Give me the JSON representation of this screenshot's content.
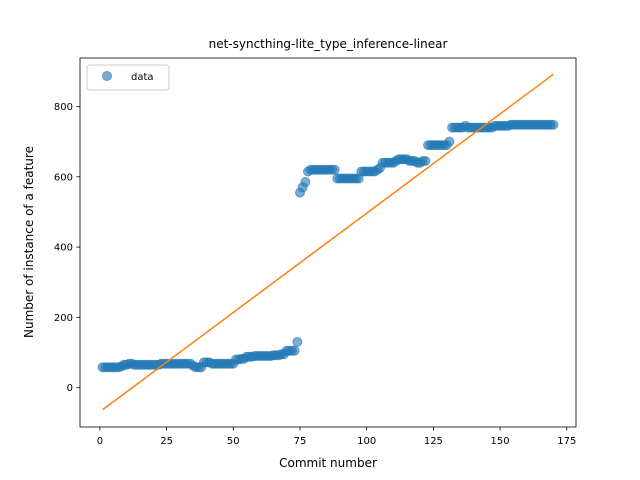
{
  "chart_data": {
    "type": "scatter",
    "title": "net-syncthing-lite_type_inference-linear",
    "xlabel": "Commit number",
    "ylabel": "Number of instance of a feature",
    "xlim": [
      -7.45,
      178.45
    ],
    "ylim": [
      -112,
      938
    ],
    "xticks": [
      0,
      25,
      50,
      75,
      100,
      125,
      150,
      175
    ],
    "yticks": [
      0,
      200,
      400,
      600,
      800
    ],
    "grid": false,
    "legend": {
      "placement": "top-left",
      "entries": [
        "data"
      ]
    },
    "series": [
      {
        "name": "data",
        "kind": "points",
        "color": "#1f77b4",
        "x": [
          1,
          2,
          3,
          4,
          5,
          6,
          7,
          8,
          9,
          10,
          11,
          12,
          13,
          14,
          15,
          16,
          17,
          18,
          19,
          20,
          21,
          22,
          23,
          24,
          25,
          26,
          27,
          28,
          29,
          30,
          31,
          32,
          33,
          34,
          35,
          36,
          37,
          38,
          39,
          40,
          41,
          42,
          43,
          44,
          45,
          46,
          47,
          48,
          49,
          50,
          51,
          52,
          53,
          54,
          55,
          56,
          57,
          58,
          59,
          60,
          61,
          62,
          63,
          64,
          65,
          66,
          67,
          68,
          69,
          70,
          71,
          72,
          73,
          74,
          75,
          76,
          77,
          78,
          79,
          80,
          81,
          82,
          83,
          84,
          85,
          86,
          87,
          88,
          89,
          90,
          91,
          92,
          93,
          94,
          95,
          96,
          97,
          98,
          99,
          100,
          101,
          102,
          103,
          104,
          105,
          106,
          107,
          108,
          109,
          110,
          111,
          112,
          113,
          114,
          115,
          116,
          117,
          118,
          119,
          120,
          121,
          122,
          123,
          124,
          125,
          126,
          127,
          128,
          129,
          130,
          131,
          132,
          133,
          134,
          135,
          136,
          137,
          138,
          139,
          140,
          141,
          142,
          143,
          144,
          145,
          146,
          147,
          148,
          149,
          150,
          151,
          152,
          153,
          154,
          155,
          156,
          157,
          158,
          159,
          160,
          161,
          162,
          163,
          164,
          165,
          166,
          167,
          168,
          169,
          170
        ],
        "y": [
          58,
          58,
          58,
          58,
          58,
          58,
          58,
          60,
          65,
          65,
          68,
          68,
          65,
          65,
          65,
          65,
          65,
          65,
          65,
          65,
          65,
          65,
          68,
          68,
          68,
          68,
          68,
          68,
          68,
          68,
          68,
          68,
          68,
          68,
          62,
          58,
          58,
          58,
          72,
          72,
          72,
          68,
          68,
          68,
          68,
          68,
          68,
          68,
          68,
          68,
          80,
          80,
          82,
          82,
          88,
          88,
          88,
          90,
          90,
          90,
          90,
          90,
          90,
          90,
          92,
          92,
          92,
          95,
          95,
          105,
          105,
          105,
          105,
          130,
          555,
          570,
          585,
          615,
          620,
          620,
          620,
          620,
          620,
          620,
          620,
          620,
          620,
          620,
          595,
          595,
          595,
          595,
          595,
          595,
          595,
          595,
          595,
          615,
          615,
          615,
          615,
          615,
          615,
          620,
          625,
          640,
          640,
          640,
          640,
          640,
          645,
          650,
          650,
          650,
          650,
          645,
          645,
          645,
          640,
          640,
          645,
          645,
          690,
          690,
          690,
          690,
          690,
          690,
          690,
          690,
          700,
          740,
          740,
          740,
          740,
          740,
          745,
          740,
          740,
          740,
          740,
          740,
          740,
          740,
          740,
          740,
          740,
          745,
          745,
          745,
          745,
          745,
          745,
          748,
          748,
          748,
          748,
          748,
          748,
          748,
          748,
          748,
          748,
          748,
          748,
          748,
          748,
          748,
          748,
          748
        ]
      },
      {
        "name": "",
        "kind": "line",
        "color": "#ff7f0e",
        "x": [
          1,
          170
        ],
        "y": [
          -63,
          892
        ]
      }
    ]
  }
}
